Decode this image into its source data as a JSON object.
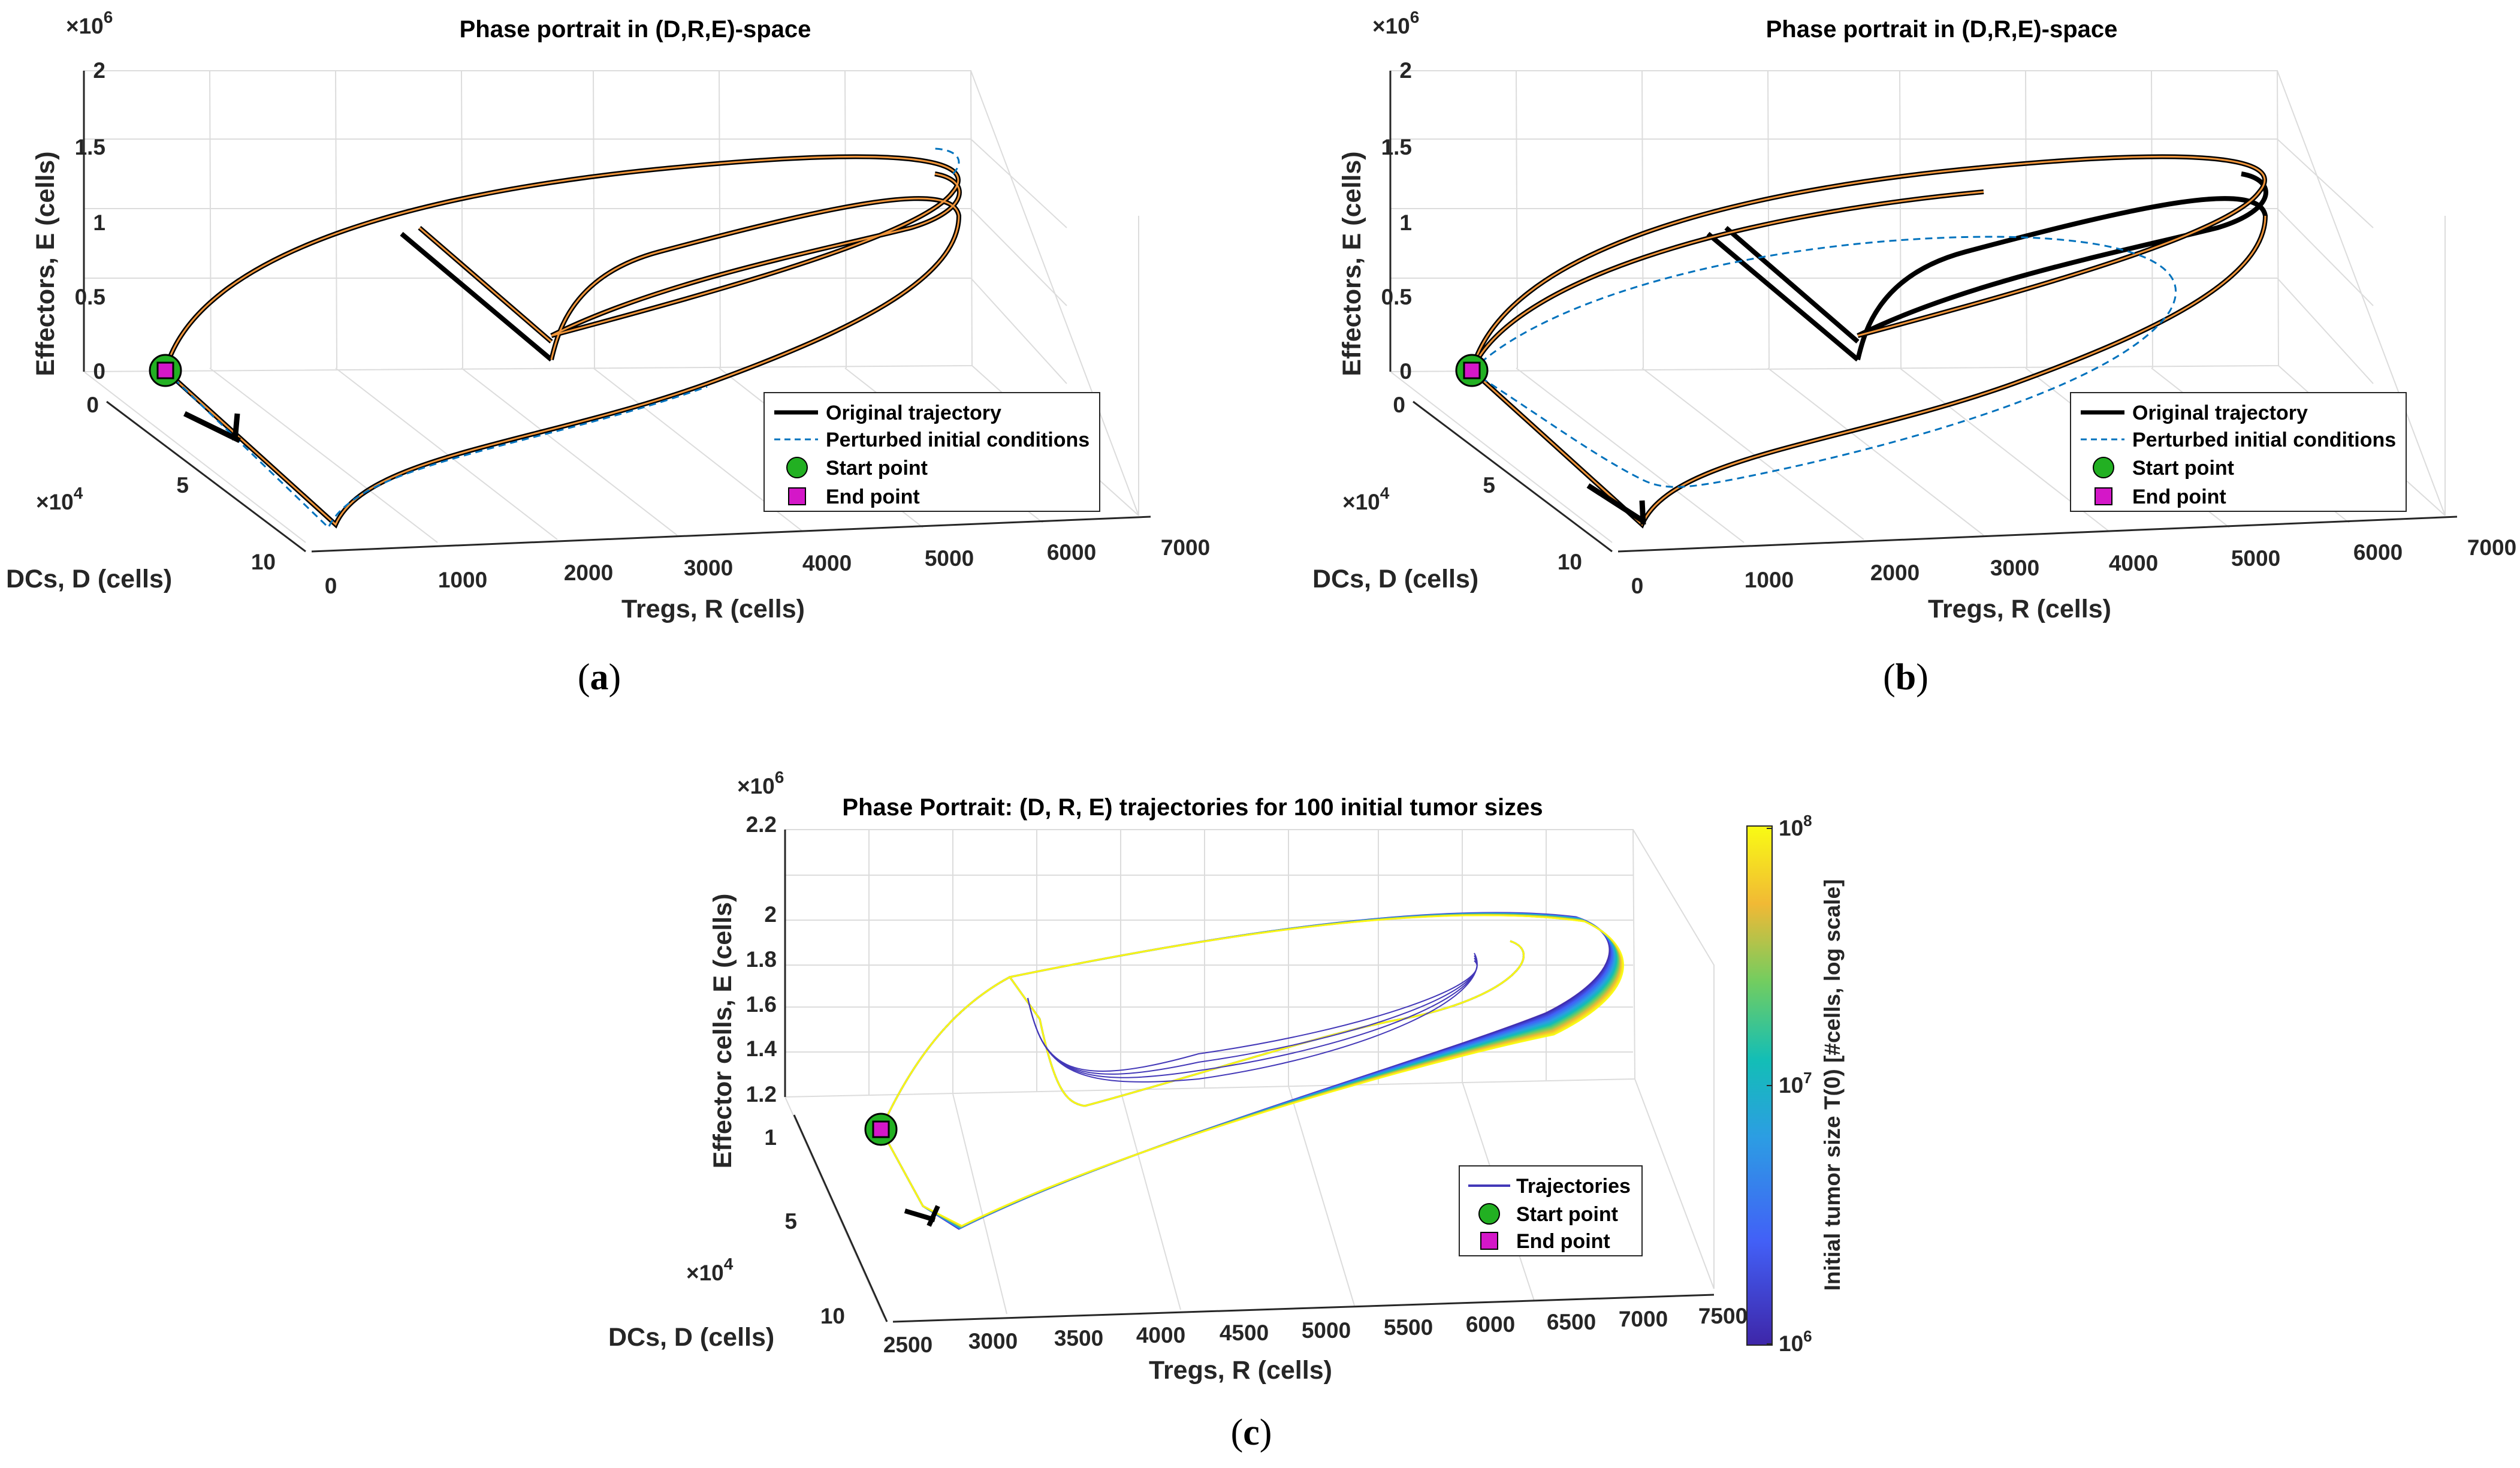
{
  "chart_data": [
    {
      "panel": "(a)",
      "type": "line",
      "title": "Phase portrait in (D,R,E)-space",
      "xlabel": "Tregs, R (cells)",
      "ylabel": "DCs, D (cells)",
      "zlabel": "Effectors, E (cells)",
      "x_ticks": [
        "0",
        "1000",
        "2000",
        "3000",
        "4000",
        "5000",
        "6000",
        "7000"
      ],
      "y_ticks": [
        "0",
        "5",
        "10"
      ],
      "z_ticks": [
        "0",
        "0.5",
        "1",
        "1.5",
        "2"
      ],
      "y_exponent_base": "×10",
      "y_exponent_power": "4",
      "z_exponent_base": "×10",
      "z_exponent_power": "6",
      "xlim": [
        0,
        7000
      ],
      "ylim": [
        0,
        100000
      ],
      "zlim": [
        0,
        2000000
      ],
      "legend": [
        "Original trajectory",
        "Perturbed initial conditions",
        "Start point",
        "End point"
      ],
      "series": [
        {
          "name": "Original trajectory",
          "color": "#000000",
          "style": "solid"
        },
        {
          "name": "Perturbed initial conditions",
          "color": "#0072BD",
          "style": "dashed"
        }
      ]
    },
    {
      "panel": "(b)",
      "type": "line",
      "title": "Phase portrait in (D,R,E)-space",
      "xlabel": "Tregs, R (cells)",
      "ylabel": "DCs, D (cells)",
      "zlabel": "Effectors, E (cells)",
      "x_ticks": [
        "0",
        "1000",
        "2000",
        "3000",
        "4000",
        "5000",
        "6000",
        "7000"
      ],
      "y_ticks": [
        "0",
        "5",
        "10"
      ],
      "z_ticks": [
        "0",
        "0.5",
        "1",
        "1.5",
        "2"
      ],
      "y_exponent_base": "×10",
      "y_exponent_power": "4",
      "z_exponent_base": "×10",
      "z_exponent_power": "6",
      "xlim": [
        0,
        7000
      ],
      "ylim": [
        0,
        100000
      ],
      "zlim": [
        0,
        2000000
      ],
      "legend": [
        "Original trajectory",
        "Perturbed initial conditions",
        "Start point",
        "End point"
      ],
      "series": [
        {
          "name": "Original trajectory",
          "color": "#000000",
          "style": "solid"
        },
        {
          "name": "Perturbed initial conditions",
          "color": "#0072BD",
          "style": "dashed"
        }
      ]
    },
    {
      "panel": "(c)",
      "type": "line",
      "title": "Phase Portrait: (D, R, E) trajectories for 100 initial tumor sizes",
      "xlabel": "Tregs, R (cells)",
      "ylabel": "DCs, D (cells)",
      "zlabel": "Effector cells, E (cells)",
      "x_ticks": [
        "2500",
        "3000",
        "3500",
        "4000",
        "4500",
        "5000",
        "5500",
        "6000",
        "6500",
        "7000",
        "7500"
      ],
      "y_ticks": [
        "5",
        "10"
      ],
      "z_ticks": [
        "1",
        "1.2",
        "1.4",
        "1.6",
        "1.8",
        "2",
        "2.2"
      ],
      "y_exponent_base": "×10",
      "y_exponent_power": "4",
      "z_exponent_base": "×10",
      "z_exponent_power": "6",
      "xlim": [
        2500,
        7500
      ],
      "ylim": [
        0,
        100000
      ],
      "zlim": [
        1000000,
        2200000
      ],
      "legend": [
        "Trajectories",
        "Start point",
        "End point"
      ],
      "colorbar": {
        "label": "Initial tumor size T(0) [#cells, log scale]",
        "ticks": [
          {
            "base": "10",
            "power": "6"
          },
          {
            "base": "10",
            "power": "7"
          },
          {
            "base": "10",
            "power": "8"
          }
        ],
        "range": [
          1000000,
          100000000
        ]
      },
      "trajectory_count": 100
    }
  ],
  "captions": {
    "a": "a",
    "b": "b",
    "c": "c"
  },
  "colors": {
    "start": "#22b022",
    "end": "#d417c8",
    "original": "#000000",
    "orange": "#f0953a",
    "perturbed": "#0072BD"
  }
}
